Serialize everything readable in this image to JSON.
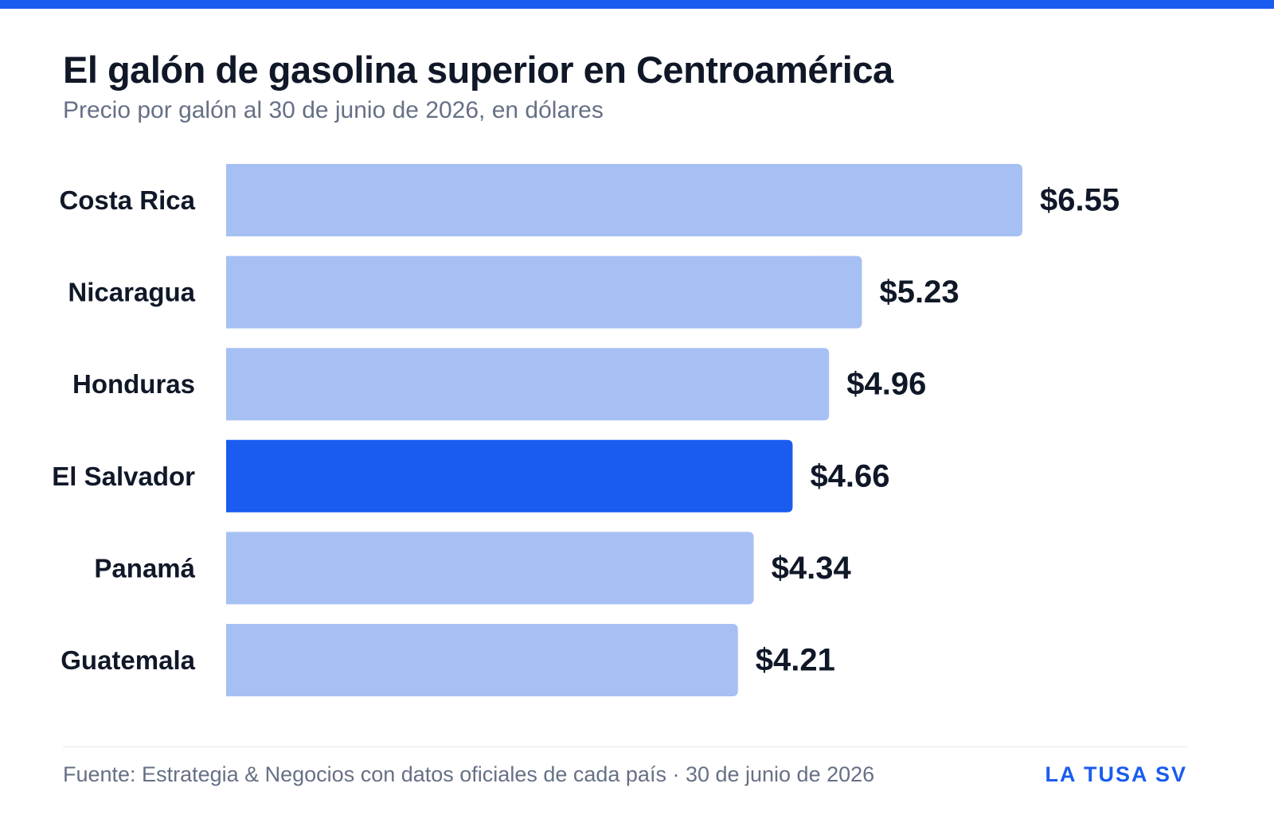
{
  "header": {
    "title": "El galón de gasolina superior en Centroamérica",
    "subtitle": "Precio por galón al 30 de junio de 2026, en dólares"
  },
  "chart_data": {
    "type": "bar",
    "orientation": "horizontal",
    "categories": [
      "Costa Rica",
      "Nicaragua",
      "Honduras",
      "El Salvador",
      "Panamá",
      "Guatemala"
    ],
    "values": [
      6.55,
      5.23,
      4.96,
      4.66,
      4.34,
      4.21
    ],
    "value_labels": [
      "$6.55",
      "$5.23",
      "$4.96",
      "$4.66",
      "$4.34",
      "$4.21"
    ],
    "highlight": "El Salvador",
    "xlim": [
      0,
      6.55
    ],
    "grid": false,
    "colors": {
      "default": "#a7c0f4",
      "highlight": "#1a5cf0"
    }
  },
  "footer": {
    "source": "Fuente: Estrategia & Negocios con datos oficiales de cada país · 30 de junio de 2026",
    "brand": "LA TUSA SV"
  }
}
